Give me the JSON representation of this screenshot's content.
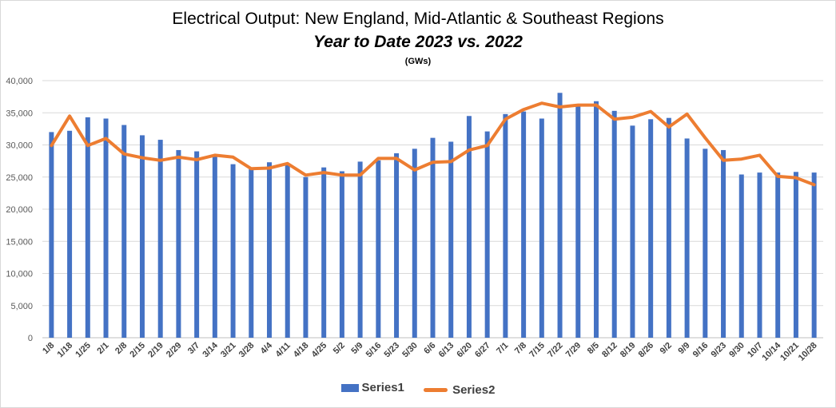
{
  "chart_data": {
    "type": "bar",
    "title": "Electrical Output:  New England, Mid-Atlantic & Southeast Regions",
    "subtitle": "Year to Date 2023 vs. 2022",
    "units_note": "(GWs)",
    "xlabel": "",
    "ylabel": "",
    "ylim": [
      0,
      40000
    ],
    "yticks": [
      "40,000",
      "35,000",
      "30,000",
      "25,000",
      "20,000",
      "15,000",
      "10,000",
      "5,000",
      "0"
    ],
    "grid": true,
    "legend_position": "bottom",
    "categories": [
      "1/8",
      "1/18",
      "1/25",
      "2/1",
      "2/8",
      "2/15",
      "2/19",
      "2/29",
      "3/7",
      "3/14",
      "3/21",
      "3/28",
      "4/4",
      "4/11",
      "4/18",
      "4/25",
      "5/2",
      "5/9",
      "5/16",
      "5/23",
      "5/30",
      "6/6",
      "6/13",
      "6/20",
      "6/27",
      "7/1",
      "7/8",
      "7/15",
      "7/22",
      "7/29",
      "8/5",
      "8/12",
      "8/19",
      "8/26",
      "9/2",
      "9/9",
      "9/16",
      "9/23",
      "9/30",
      "10/7",
      "10/14",
      "10/21",
      "10/28"
    ],
    "series": [
      {
        "name": "Series1",
        "kind": "bar",
        "color": "#4472c4",
        "values": [
          32000,
          32200,
          34300,
          34100,
          33100,
          31500,
          30800,
          29200,
          29000,
          28300,
          27000,
          26500,
          27300,
          26900,
          25000,
          26500,
          25900,
          27400,
          27600,
          28700,
          29400,
          31100,
          30500,
          34500,
          32100,
          34800,
          35200,
          34100,
          38100,
          36000,
          36800,
          35300,
          33000,
          34000,
          34200,
          31000,
          29400,
          29200,
          25400,
          25700,
          25700,
          25800,
          25700
        ]
      },
      {
        "name": "Series2",
        "kind": "line",
        "color": "#ed7d31",
        "values": [
          29900,
          34500,
          29900,
          31000,
          28600,
          28000,
          27600,
          28100,
          27700,
          28400,
          28100,
          26300,
          26400,
          27100,
          25300,
          25700,
          25300,
          25300,
          27900,
          27900,
          26100,
          27300,
          27400,
          29200,
          29900,
          34000,
          35500,
          36500,
          35900,
          36200,
          36200,
          34000,
          34300,
          35200,
          32800,
          34800,
          31100,
          27600,
          27800,
          28400,
          25100,
          24900,
          23800
        ]
      }
    ]
  }
}
